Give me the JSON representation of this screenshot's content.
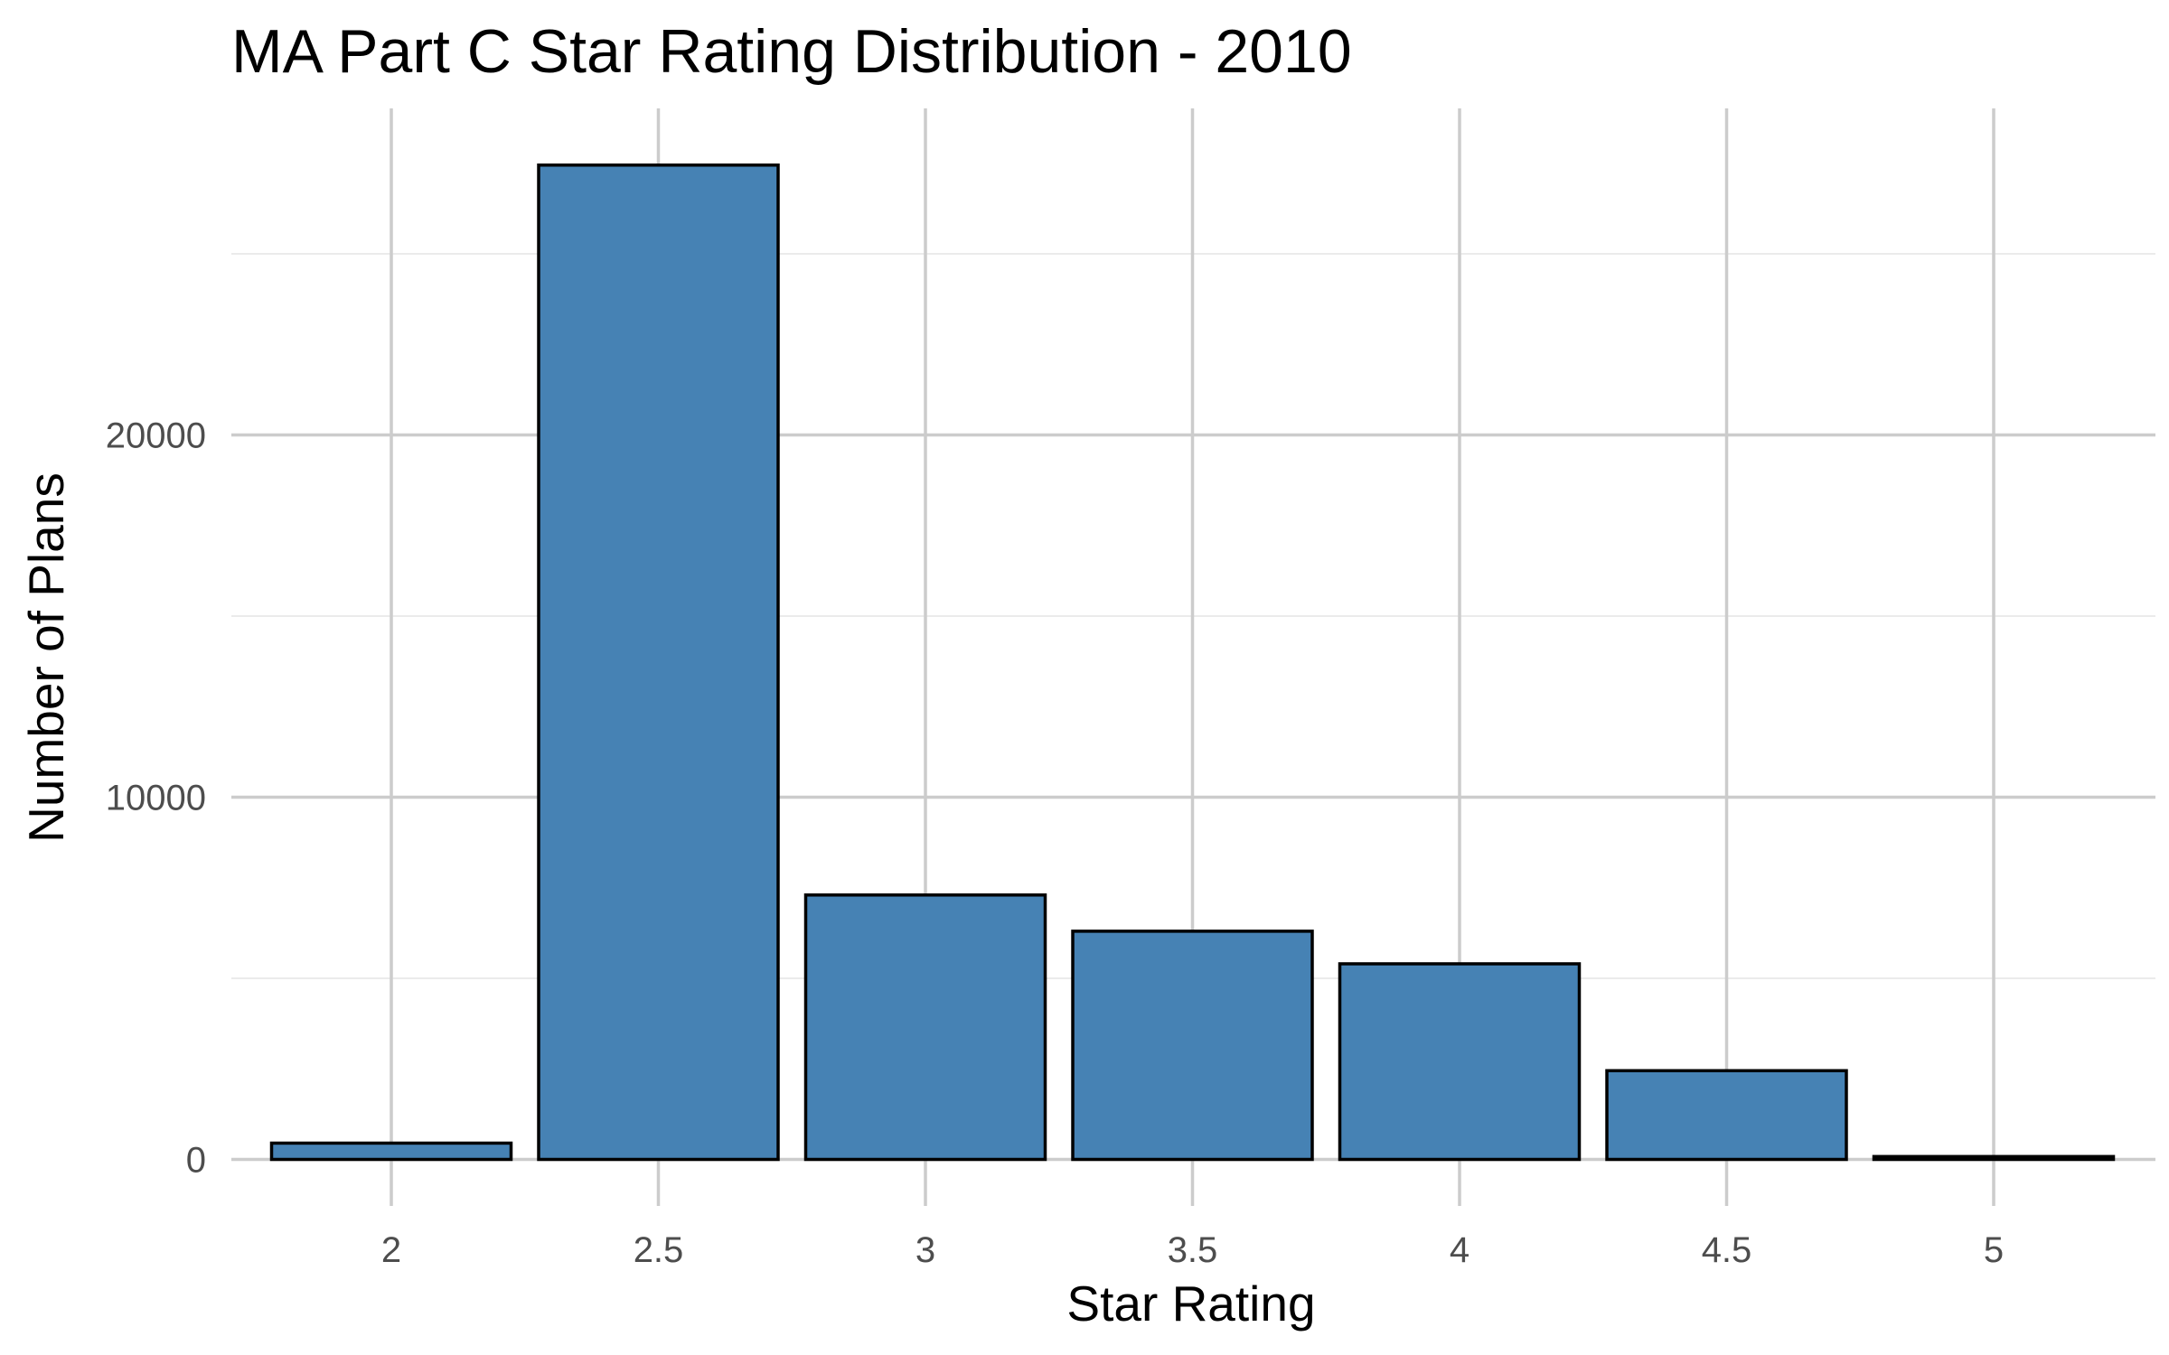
{
  "chart_data": {
    "type": "bar",
    "title": "MA Part C Star Rating Distribution - 2010",
    "xlabel": "Star Rating",
    "ylabel": "Number of Plans",
    "categories": [
      "2",
      "2.5",
      "3",
      "3.5",
      "4",
      "4.5",
      "5"
    ],
    "values": [
      450,
      27450,
      7300,
      6300,
      5400,
      2450,
      80
    ],
    "yticks": [
      "0",
      "10000",
      "20000"
    ],
    "ytick_values": [
      0,
      10000,
      20000
    ],
    "ylim": [
      -1100,
      29500
    ],
    "grid": true,
    "legend": "none",
    "bar_fill": "#4682B4",
    "bar_stroke": "#000000",
    "major_grid_color": "#cccccc",
    "minor_grid_color": "#ebebeb"
  }
}
